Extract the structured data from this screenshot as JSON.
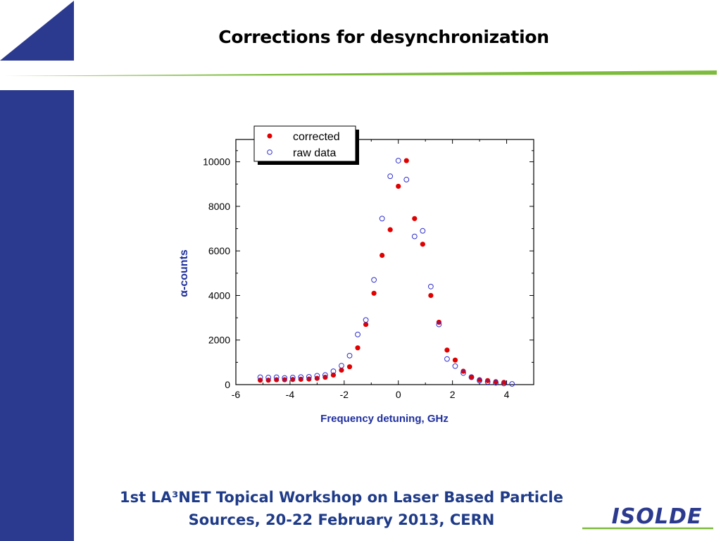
{
  "slide": {
    "title": "Corrections for desynchronization",
    "footer_line1": "1st LA³NET Topical Workshop on Laser Based Particle",
    "footer_line2": "Sources, 20-22 February 2013,   CERN",
    "logo_text": "ISOLDE"
  },
  "colors": {
    "navy": "#2b3a8f",
    "green": "#7dbb3c",
    "corrected": "#e00000",
    "raw": "#2f2fd0",
    "axis_label": "#1f2f9e"
  },
  "chart_data": {
    "type": "scatter",
    "xlabel": "Frequency detuning, GHz",
    "ylabel": "α-counts",
    "xlim": [
      -6,
      5
    ],
    "ylim": [
      0,
      11000
    ],
    "xticks": [
      -6,
      -4,
      -2,
      0,
      2,
      4
    ],
    "yticks": [
      0,
      2000,
      4000,
      6000,
      8000,
      10000
    ],
    "legend_position": "top-left",
    "grid": false,
    "series": [
      {
        "name": "corrected",
        "marker": "filled-circle",
        "color": "#e00000",
        "x": [
          -5.1,
          -4.8,
          -4.5,
          -4.2,
          -3.9,
          -3.6,
          -3.3,
          -3.0,
          -2.7,
          -2.4,
          -2.1,
          -1.8,
          -1.5,
          -1.2,
          -0.9,
          -0.6,
          -0.3,
          0.0,
          0.3,
          0.6,
          0.9,
          1.2,
          1.5,
          1.8,
          2.1,
          2.4,
          2.7,
          3.0,
          3.3,
          3.6,
          3.9
        ],
        "y": [
          200,
          200,
          220,
          220,
          230,
          240,
          250,
          280,
          330,
          430,
          650,
          800,
          1650,
          2700,
          4100,
          5800,
          6950,
          8900,
          10050,
          7450,
          6300,
          4000,
          2800,
          1550,
          1100,
          600,
          350,
          220,
          180,
          130,
          100
        ]
      },
      {
        "name": "raw data",
        "marker": "open-circle",
        "color": "#2f2fd0",
        "x": [
          -5.1,
          -4.8,
          -4.5,
          -4.2,
          -3.9,
          -3.6,
          -3.3,
          -3.0,
          -2.7,
          -2.4,
          -2.1,
          -1.8,
          -1.5,
          -1.2,
          -0.9,
          -0.6,
          -0.3,
          0.0,
          0.3,
          0.6,
          0.9,
          1.2,
          1.5,
          1.8,
          2.1,
          2.4,
          2.7,
          3.0,
          3.3,
          3.6,
          3.9,
          4.2
        ],
        "y": [
          330,
          320,
          330,
          300,
          320,
          340,
          350,
          400,
          430,
          600,
          850,
          1300,
          2250,
          2900,
          4700,
          7450,
          9350,
          10050,
          9200,
          6650,
          6900,
          4400,
          2700,
          1150,
          830,
          520,
          330,
          180,
          120,
          80,
          50,
          30
        ]
      }
    ]
  }
}
